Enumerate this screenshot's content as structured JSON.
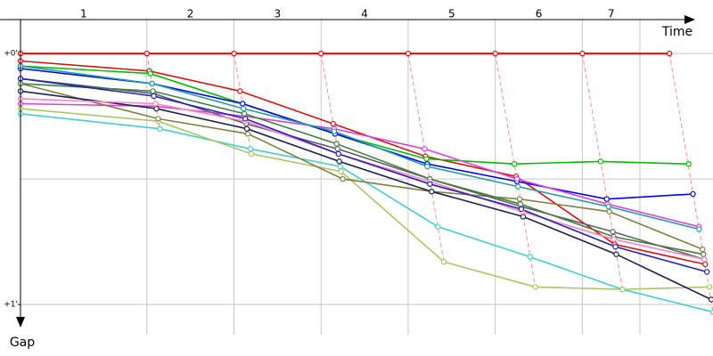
{
  "chart_data": {
    "type": "line",
    "x_label": "Time",
    "y_label": "Gap",
    "categories": [
      "1",
      "2",
      "3",
      "4",
      "5",
      "6",
      "7"
    ],
    "xlim": [
      -0.45,
      7.5
    ],
    "xticks": [
      1,
      2,
      3,
      4,
      5,
      6,
      6.66
    ],
    "ylim": [
      -0.135,
      1.12
    ],
    "yticks": [
      {
        "value": 0,
        "label": "+0'"
      },
      {
        "value": 1,
        "label": "+1'"
      }
    ],
    "ygrid": [
      0,
      0.5,
      1
    ],
    "series": [
      {
        "color": "#ff0000",
        "x": [
          -0.45,
          1,
          2,
          3,
          4,
          5,
          6,
          7
        ],
        "values": [
          0,
          0,
          0,
          0,
          0,
          0,
          0,
          0
        ]
      },
      {
        "color": "#e01010",
        "x": [
          -0.45,
          1.03,
          2.07,
          3.14,
          4.2,
          5.24,
          6.37,
          7.41
        ],
        "values": [
          0.03,
          0.07,
          0.15,
          0.28,
          0.41,
          0.49,
          0.76,
          0.84
        ]
      },
      {
        "color": "#00c000",
        "x": [
          -0.45,
          1.04,
          2.1,
          3.16,
          4.21,
          5.22,
          6.21,
          7.22
        ],
        "values": [
          0.05,
          0.08,
          0.2,
          0.32,
          0.42,
          0.44,
          0.43,
          0.44
        ]
      },
      {
        "color": "#0000ff",
        "x": [
          -0.45,
          1.06,
          2.1,
          3.16,
          4.22,
          5.25,
          6.28,
          7.27
        ],
        "values": [
          0.06,
          0.12,
          0.2,
          0.32,
          0.44,
          0.51,
          0.58,
          0.56
        ]
      },
      {
        "color": "#e040e0",
        "x": [
          -0.45,
          1.1,
          2.12,
          3.15,
          4.19,
          5.25,
          6.29,
          7.34
        ],
        "values": [
          0.2,
          0.21,
          0.25,
          0.3,
          0.38,
          0.5,
          0.6,
          0.69
        ]
      },
      {
        "color": "#40d0d0",
        "x": [
          -0.45,
          1.15,
          2.19,
          3.22,
          4.34,
          5.4,
          6.46,
          7.5
        ],
        "values": [
          0.24,
          0.3,
          0.38,
          0.45,
          0.69,
          0.81,
          0.94,
          1.03
        ]
      },
      {
        "color": "#a8c860",
        "x": [
          -0.45,
          1.13,
          2.2,
          3.23,
          4.41,
          5.46,
          6.46,
          7.46
        ],
        "values": [
          0.22,
          0.27,
          0.4,
          0.47,
          0.83,
          0.93,
          0.94,
          0.93
        ]
      },
      {
        "color": "#808040",
        "x": [
          -0.45,
          1.13,
          2.16,
          3.25,
          4.27,
          5.28,
          6.31,
          7.38
        ],
        "values": [
          0.12,
          0.26,
          0.32,
          0.5,
          0.55,
          0.58,
          0.63,
          0.78
        ]
      },
      {
        "color": "#202050",
        "x": [
          -0.45,
          1.11,
          2.15,
          3.21,
          4.27,
          5.32,
          6.39,
          7.48
        ],
        "values": [
          0.15,
          0.22,
          0.3,
          0.43,
          0.55,
          0.65,
          0.8,
          0.98
        ]
      },
      {
        "color": "#20a0a0",
        "x": [
          -0.45,
          1.06,
          2.11,
          3.15,
          4.22,
          5.26,
          6.3,
          7.34
        ],
        "values": [
          0.05,
          0.12,
          0.22,
          0.31,
          0.45,
          0.53,
          0.61,
          0.7
        ]
      },
      {
        "color": "#606060",
        "x": [
          -0.45,
          1.08,
          2.14,
          3.19,
          4.25,
          5.3,
          6.35,
          7.4
        ],
        "values": [
          0.1,
          0.16,
          0.28,
          0.38,
          0.5,
          0.61,
          0.71,
          0.82
        ]
      },
      {
        "color": "#408040",
        "x": [
          -0.45,
          1.07,
          2.12,
          3.18,
          4.25,
          5.29,
          6.36,
          7.39
        ],
        "values": [
          0.12,
          0.15,
          0.24,
          0.36,
          0.5,
          0.6,
          0.73,
          0.8
        ]
      },
      {
        "color": "#ff80c0",
        "x": [
          -0.45,
          1.1,
          2.13,
          3.2,
          4.25,
          5.31,
          6.36,
          7.4
        ],
        "values": [
          0.18,
          0.2,
          0.27,
          0.4,
          0.51,
          0.63,
          0.74,
          0.82
        ]
      },
      {
        "color": "#2020c0",
        "x": [
          -0.45,
          1.08,
          2.13,
          3.2,
          4.25,
          5.3,
          6.38,
          7.43
        ],
        "values": [
          0.1,
          0.17,
          0.26,
          0.4,
          0.52,
          0.62,
          0.77,
          0.87
        ]
      }
    ]
  }
}
